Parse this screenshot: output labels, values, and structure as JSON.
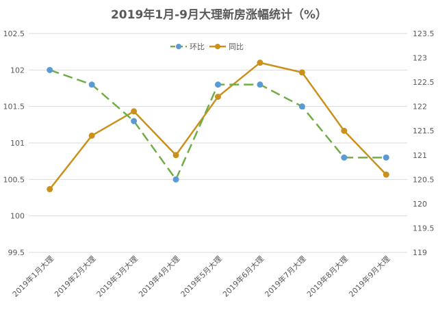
{
  "chart_data": {
    "type": "line",
    "title": "2019年1月-9月大理新房涨幅统计（%）",
    "categories": [
      "2019年1月大理",
      "2019年2月大理",
      "2019年3月大理",
      "2019年4月大理",
      "2019年5月大理",
      "2019年6月大理",
      "2019年7月大理",
      "2019年8月大理",
      "2019年9月大理"
    ],
    "y_left": {
      "min": 99.5,
      "max": 102.5,
      "step": 0.5,
      "ticks": [
        "99.5",
        "100",
        "100.5",
        "101",
        "101.5",
        "102",
        "102.5"
      ]
    },
    "y_right": {
      "min": 119,
      "max": 123.5,
      "step": 0.5,
      "ticks": [
        "119",
        "119.5",
        "120",
        "120.5",
        "121",
        "121.5",
        "122",
        "122.5",
        "123",
        "123.5"
      ]
    },
    "grid": true,
    "legend_position": "top-center",
    "series": [
      {
        "name": "环比",
        "axis": "left",
        "style": "dashed",
        "line_color": "#70ad47",
        "marker_color": "#5b9bd5",
        "values": [
          102.0,
          101.8,
          101.3,
          100.5,
          101.8,
          101.8,
          101.5,
          100.8,
          100.8
        ]
      },
      {
        "name": "同比",
        "axis": "right",
        "style": "solid",
        "line_color": "#c9901b",
        "marker_color": "#c9901b",
        "values": [
          120.3,
          121.4,
          121.9,
          121.0,
          122.2,
          122.9,
          122.7,
          121.5,
          120.6
        ]
      }
    ]
  }
}
